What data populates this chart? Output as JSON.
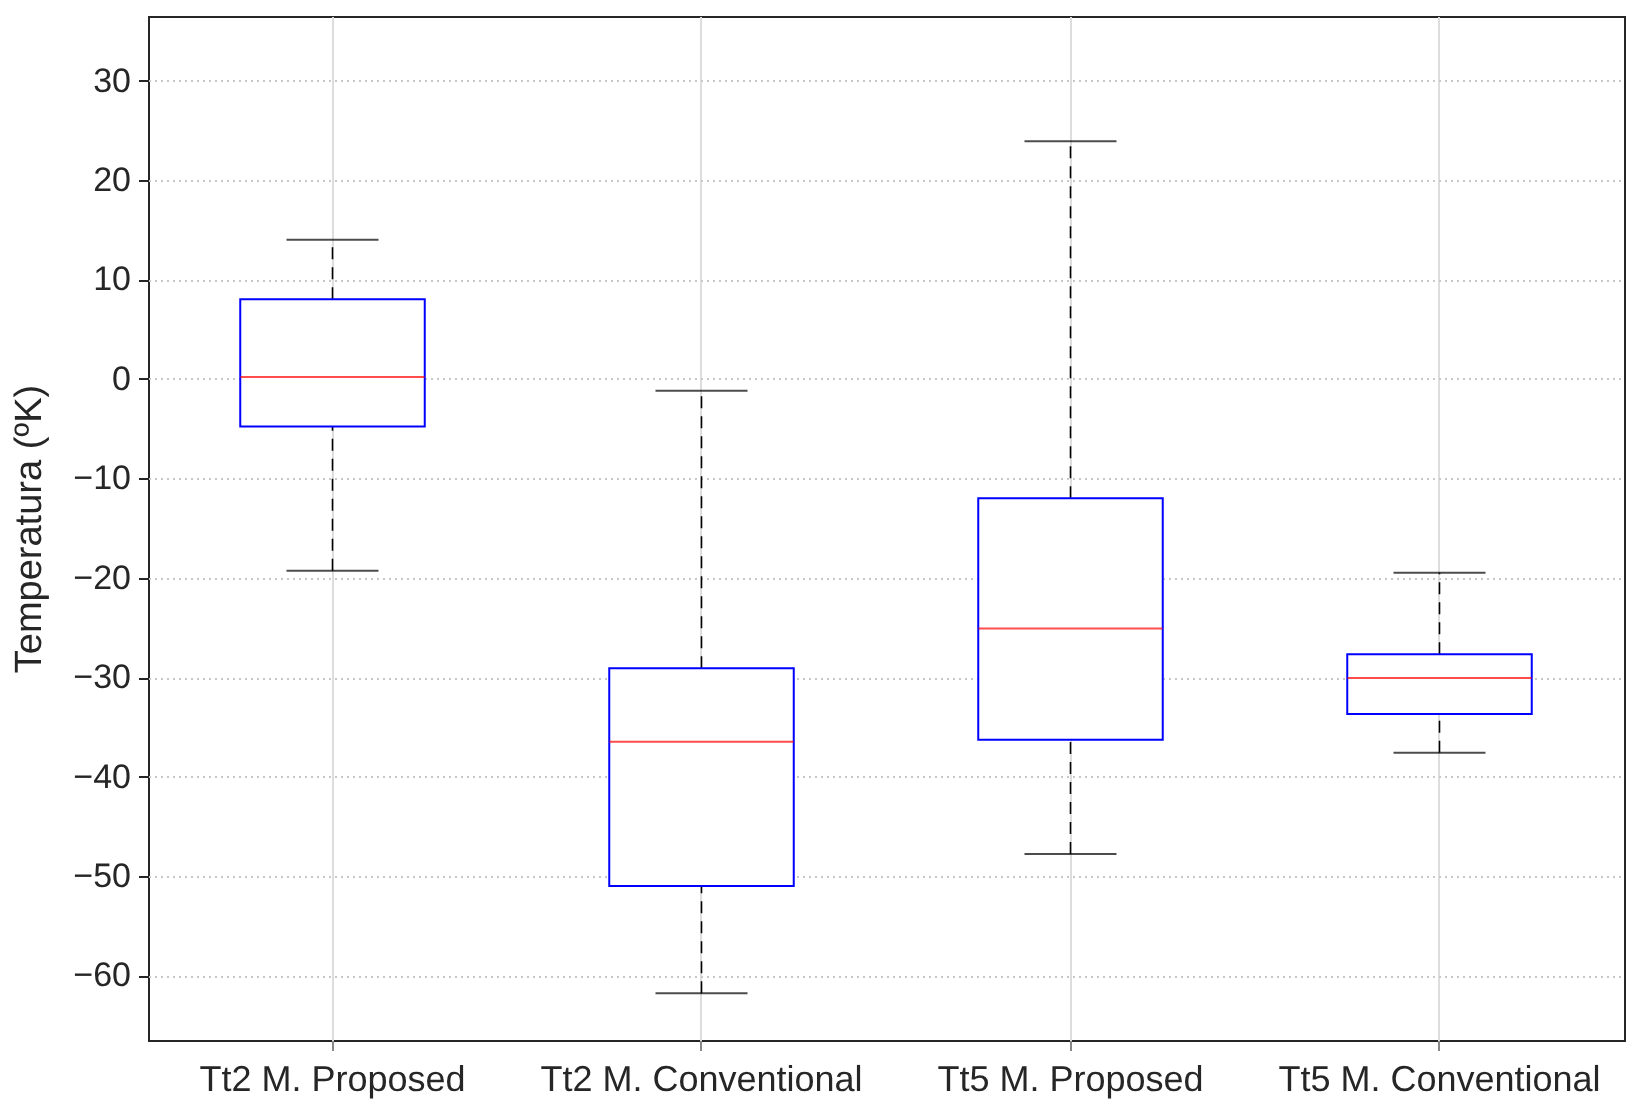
{
  "chart_data": {
    "type": "box",
    "ylabel": "Temperatura (ºK)",
    "categories": [
      "Tt2 M. Proposed",
      "Tt2 M. Conventional",
      "Tt5 M. Proposed",
      "Tt5 M. Conventional"
    ],
    "series": [
      {
        "color": "#0000ff",
        "boxes": [
          {
            "low": -19.3,
            "q1": -4.8,
            "median": 0.2,
            "q3": 8,
            "high": 14
          },
          {
            "low": -61.8,
            "q1": -51,
            "median": -36.5,
            "q3": -29.1,
            "high": -1.2
          },
          {
            "low": -47.8,
            "q1": -36.3,
            "median": -25.1,
            "q3": -12,
            "high": 23.9
          },
          {
            "low": -37.6,
            "q1": -33.7,
            "median": -30.1,
            "q3": -27.7,
            "high": -19.5
          }
        ]
      }
    ],
    "ylim": [
      -66.5,
      36.5
    ],
    "yticks": [
      -60,
      -50,
      -40,
      -30,
      -20,
      -10,
      0,
      10,
      20,
      30
    ],
    "grid": true
  }
}
